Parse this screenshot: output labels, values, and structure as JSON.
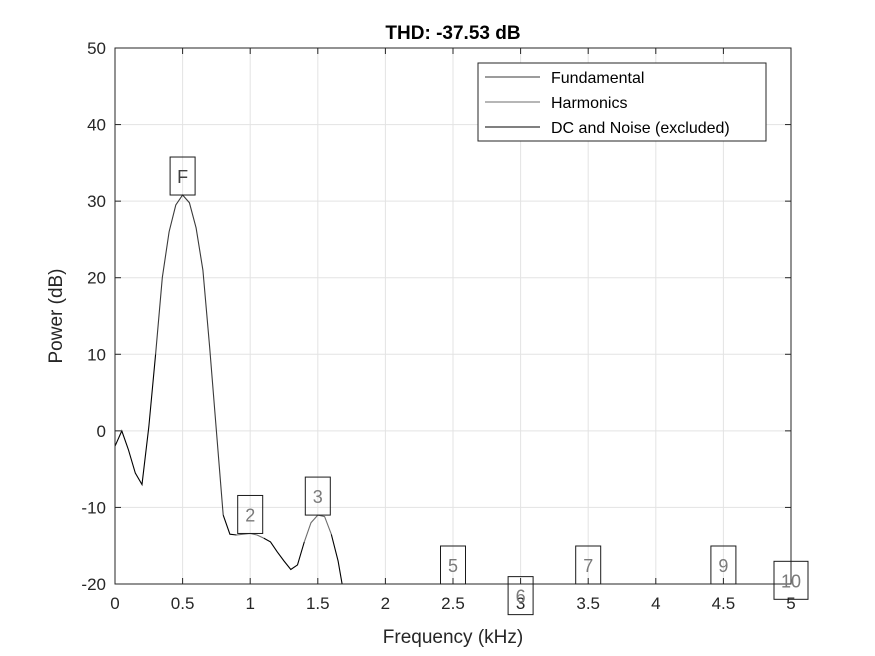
{
  "chart_data": {
    "type": "line",
    "title": "THD: -37.53 dB",
    "xlabel": "Frequency (kHz)",
    "ylabel": "Power (dB)",
    "xlim": [
      0,
      5
    ],
    "ylim": [
      -20,
      50
    ],
    "xticks": [
      0,
      0.5,
      1,
      1.5,
      2,
      2.5,
      3,
      3.5,
      4,
      4.5,
      5
    ],
    "yticks": [
      -20,
      -10,
      0,
      10,
      20,
      30,
      40,
      50
    ],
    "grid": true,
    "legend_position": "top-right",
    "legend": [
      "Fundamental",
      "Harmonics",
      "DC and Noise (excluded)"
    ],
    "colors": {
      "fundamental": "#3a3a3a",
      "harmonics": "#6e6e6e",
      "noise": "#000000",
      "grid": "#e3e3e3",
      "axis": "#262626",
      "marker_text_fundamental": "#404040",
      "marker_text_harmonic": "#7a7a7a"
    },
    "series": [
      {
        "name": "DC and Noise (excluded)",
        "points": [
          [
            0.0,
            -2.0
          ],
          [
            0.05,
            0.0
          ],
          [
            0.1,
            -2.5
          ],
          [
            0.15,
            -5.5
          ],
          [
            0.2,
            -7.0
          ],
          [
            0.25,
            0.5
          ],
          [
            0.3,
            10.0
          ],
          [
            0.8,
            -11.0
          ],
          [
            0.85,
            -13.5
          ],
          [
            0.9,
            -13.6
          ],
          [
            1.1,
            -14.0
          ],
          [
            1.15,
            -14.5
          ],
          [
            1.2,
            -15.8
          ],
          [
            1.25,
            -17.0
          ],
          [
            1.3,
            -18.1
          ],
          [
            1.35,
            -17.5
          ],
          [
            1.4,
            -14.5
          ],
          [
            1.6,
            -13.5
          ],
          [
            1.65,
            -17.0
          ],
          [
            1.68,
            -20.0
          ]
        ]
      },
      {
        "name": "Fundamental",
        "points": [
          [
            0.3,
            10.0
          ],
          [
            0.35,
            20.0
          ],
          [
            0.4,
            26.0
          ],
          [
            0.45,
            29.5
          ],
          [
            0.5,
            30.8
          ],
          [
            0.55,
            29.8
          ],
          [
            0.6,
            26.5
          ],
          [
            0.65,
            21.0
          ],
          [
            0.7,
            11.0
          ],
          [
            0.75,
            0.0
          ],
          [
            0.8,
            -11.0
          ]
        ]
      },
      {
        "name": "Harmonics",
        "points": [
          [
            0.9,
            -13.6
          ],
          [
            0.95,
            -13.5
          ],
          [
            1.0,
            -13.4
          ],
          [
            1.05,
            -13.6
          ],
          [
            1.1,
            -14.0
          ],
          [
            1.4,
            -14.5
          ],
          [
            1.45,
            -12.0
          ],
          [
            1.5,
            -11.0
          ],
          [
            1.55,
            -11.2
          ],
          [
            1.6,
            -13.5
          ]
        ]
      }
    ],
    "markers": [
      {
        "label": "F",
        "x": 0.5,
        "y": 30.8,
        "kind": "fundamental"
      },
      {
        "label": "2",
        "x": 1.0,
        "y": -13.4,
        "kind": "harmonic"
      },
      {
        "label": "3",
        "x": 1.5,
        "y": -11.0,
        "kind": "harmonic"
      },
      {
        "label": "5",
        "x": 2.5,
        "y": -20.0,
        "kind": "harmonic"
      },
      {
        "label": "6",
        "x": 3.0,
        "y": -24.0,
        "kind": "harmonic"
      },
      {
        "label": "7",
        "x": 3.5,
        "y": -20.0,
        "kind": "harmonic"
      },
      {
        "label": "9",
        "x": 4.5,
        "y": -20.0,
        "kind": "harmonic"
      },
      {
        "label": "10",
        "x": 5.0,
        "y": -22.0,
        "kind": "harmonic"
      }
    ]
  }
}
